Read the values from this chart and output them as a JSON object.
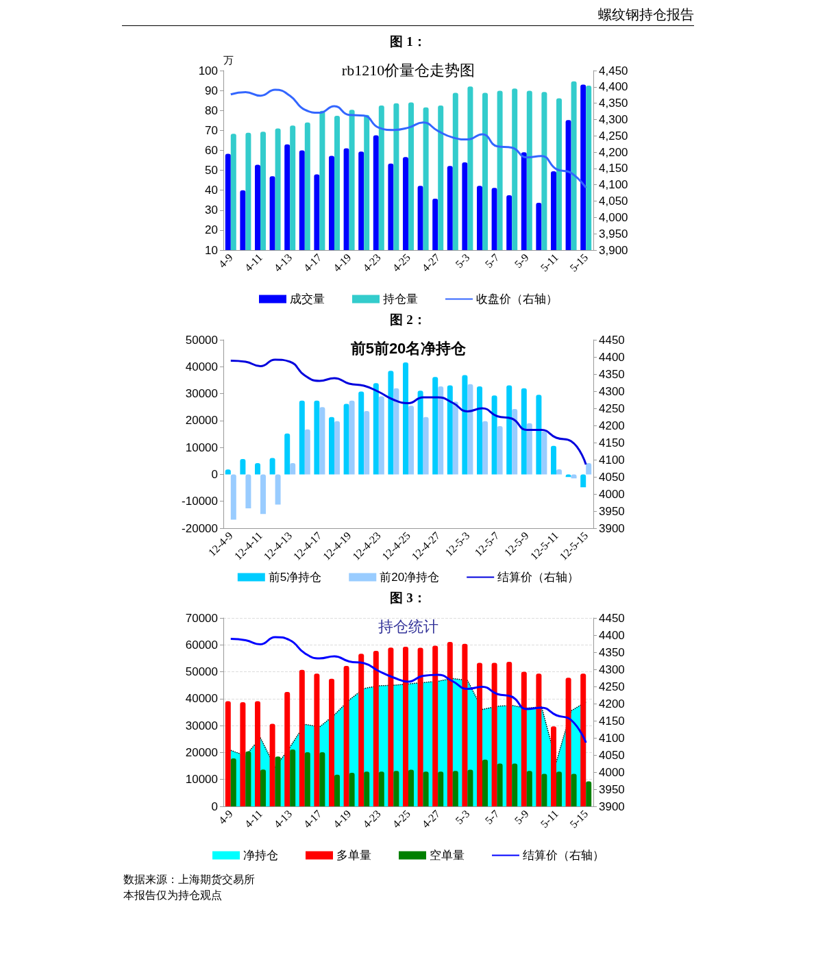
{
  "chart_data": [
    {
      "type": "bar",
      "title": "rb1210价量仓走势图",
      "ylabel": "万",
      "annotations": [
        "螺纹钢持仓报告",
        "图 1："
      ],
      "categories": [
        "4-9",
        null,
        "4-11",
        null,
        "4-13",
        null,
        "4-17",
        null,
        "4-19",
        null,
        "4-23",
        null,
        "4-25",
        null,
        "4-27",
        null,
        "5-3",
        null,
        "5-7",
        null,
        "5-9",
        null,
        "5-11",
        null,
        "5-15"
      ],
      "series": [
        {
          "name": "成交量",
          "color": "#0000ff",
          "values": [
            58.3,
            40,
            52.8,
            47,
            63,
            60,
            48,
            57.2,
            61,
            59.4,
            67.5,
            53.4,
            56.6,
            42.2,
            35.8,
            52.2,
            54,
            42.2,
            41.2,
            37.5,
            59,
            33.7,
            49.5,
            75.2,
            93
          ]
        },
        {
          "name": "持仓量",
          "color": "#33cccc",
          "values": [
            68.3,
            68.8,
            69.3,
            71,
            72.4,
            74,
            79.8,
            77.3,
            80.3,
            77.8,
            82.5,
            83.6,
            84,
            81.5,
            82.5,
            88.8,
            92,
            88.8,
            89.9,
            91,
            89.9,
            89.3,
            86.1,
            94.6,
            92.4
          ]
        },
        {
          "name": "收盘价（右轴）",
          "type": "line",
          "axis": "y2",
          "color": "#3366ff",
          "values": [
            4377,
            4384,
            4373,
            4391,
            4373,
            4330,
            4321,
            4341,
            4314,
            4312,
            4275,
            4268,
            4275,
            4291,
            4265,
            4245,
            4239,
            4255,
            4218,
            4214,
            4184,
            4188,
            4148,
            4136,
            4091
          ]
        }
      ],
      "ylim": [
        10,
        100
      ],
      "yticks": [
        10,
        20,
        30,
        40,
        50,
        60,
        70,
        80,
        90,
        100
      ],
      "y2lim": [
        3900,
        4450
      ],
      "y2ticks": [
        {
          "value": 3900,
          "label": "3,900"
        },
        {
          "value": 3950,
          "label": "3,950"
        },
        {
          "value": 4000,
          "label": "4,000"
        },
        {
          "value": 4050,
          "label": "4,050"
        },
        {
          "value": 4100,
          "label": "4,100"
        },
        {
          "value": 4150,
          "label": "4,150"
        },
        {
          "value": 4200,
          "label": "4,200"
        },
        {
          "value": 4250,
          "label": "4,250"
        },
        {
          "value": 4300,
          "label": "4,300"
        },
        {
          "value": 4350,
          "label": "4,350"
        },
        {
          "value": 4400,
          "label": "4,400"
        },
        {
          "value": 4450,
          "label": "4,450"
        }
      ],
      "grid": false,
      "legend": "bottom",
      "marker": "none",
      "line_style": "solid"
    },
    {
      "type": "bar",
      "title": "前5前20名净持仓",
      "annotations": [
        "图 2："
      ],
      "categories": [
        "12-4-9",
        null,
        "12-4-11",
        null,
        "12-4-13",
        null,
        "12-4-17",
        null,
        "12-4-19",
        null,
        "12-4-23",
        null,
        "12-4-25",
        null,
        "12-4-27",
        null,
        "12-5-3",
        null,
        "12-5-7",
        null,
        "12-5-9",
        null,
        "12-5-11",
        null,
        "12-5-15"
      ],
      "series": [
        {
          "name": "前5净持仓",
          "color": "#00ccff",
          "values": [
            1800,
            5700,
            4200,
            6100,
            15200,
            27400,
            27400,
            21300,
            26200,
            30800,
            33900,
            38500,
            41600,
            31100,
            36200,
            33100,
            36900,
            32700,
            29300,
            33100,
            32000,
            29600,
            10600,
            -1000,
            -4800
          ]
        },
        {
          "name": "前20净持仓",
          "color": "#99ccff",
          "values": [
            -16800,
            -12600,
            -14700,
            -11200,
            4200,
            16700,
            25000,
            19800,
            27400,
            23500,
            29000,
            32000,
            25500,
            21300,
            32700,
            27000,
            33500,
            19800,
            17900,
            24300,
            19000,
            16000,
            1900,
            -1500,
            4200
          ]
        },
        {
          "name": "结算价（右轴）",
          "type": "line",
          "axis": "y2",
          "color": "#0000dd",
          "values": [
            4389,
            4386,
            4373,
            4392,
            4386,
            4346,
            4330,
            4338,
            4322,
            4316,
            4298,
            4275,
            4265,
            4282,
            4282,
            4266,
            4241,
            4250,
            4227,
            4220,
            4187,
            4187,
            4164,
            4154,
            4086
          ]
        }
      ],
      "ylim": [
        -20000,
        50000
      ],
      "yticks": [
        -20000,
        -10000,
        0,
        10000,
        20000,
        30000,
        40000,
        50000
      ],
      "y2lim": [
        3900,
        4450
      ],
      "y2ticks": [
        3900,
        3950,
        4000,
        4050,
        4100,
        4150,
        4200,
        4250,
        4300,
        4350,
        4400,
        4450
      ],
      "grid": false,
      "legend": "bottom",
      "marker": "none",
      "line_style": "solid"
    },
    {
      "type": "bar",
      "title": "持仓统计",
      "annotations": [
        "图 3：",
        "数据来源：上海期货交易所",
        "本报告仅为持仓观点"
      ],
      "categories": [
        "4-9",
        null,
        "4-11",
        null,
        "4-13",
        null,
        "4-17",
        null,
        "4-19",
        null,
        "4-23",
        null,
        "4-25",
        null,
        "4-27",
        null,
        "5-3",
        null,
        "5-7",
        null,
        "5-9",
        null,
        "5-11",
        null,
        "5-15"
      ],
      "series": [
        {
          "name": "净持仓",
          "type": "area",
          "color": "#00ffff",
          "line_style": "dotted",
          "values": [
            20800,
            18800,
            25500,
            14500,
            22000,
            30500,
            29500,
            34000,
            39500,
            43800,
            44800,
            45000,
            45500,
            46000,
            46500,
            47500,
            46800,
            36000,
            37200,
            37500,
            36500,
            37000,
            16500,
            35500,
            38800
          ]
        },
        {
          "name": "多单量",
          "color": "#ff0000",
          "values": [
            39100,
            38700,
            39100,
            30700,
            42500,
            50700,
            49300,
            47400,
            52200,
            56700,
            57800,
            59000,
            59300,
            58900,
            59700,
            61100,
            60400,
            53300,
            53300,
            53700,
            50000,
            49300,
            29700,
            47800,
            49300
          ]
        },
        {
          "name": "空单量",
          "color": "#008000",
          "values": [
            17800,
            20400,
            13700,
            18500,
            21100,
            20100,
            20100,
            11800,
            12500,
            12900,
            12900,
            13200,
            13600,
            12900,
            12900,
            13200,
            13600,
            17400,
            15900,
            15900,
            13200,
            12100,
            12900,
            12100,
            9300
          ]
        },
        {
          "name": "结算价（右轴）",
          "type": "line",
          "axis": "y2",
          "color": "#0000ff",
          "values": [
            4389,
            4385,
            4373,
            4394,
            4385,
            4347,
            4332,
            4338,
            4323,
            4318,
            4295,
            4276,
            4264,
            4281,
            4284,
            4265,
            4243,
            4249,
            4228,
            4220,
            4184,
            4188,
            4166,
            4152,
            4086
          ]
        }
      ],
      "ylim": [
        0,
        70000
      ],
      "yticks": [
        0,
        10000,
        20000,
        30000,
        40000,
        50000,
        60000,
        70000
      ],
      "y2lim": [
        3900,
        4450
      ],
      "y2ticks": [
        3900,
        3950,
        4000,
        4050,
        4100,
        4150,
        4200,
        4250,
        4300,
        4350,
        4400,
        4450
      ],
      "grid": "y",
      "legend": "bottom",
      "marker": "none",
      "line_style": "solid"
    }
  ]
}
